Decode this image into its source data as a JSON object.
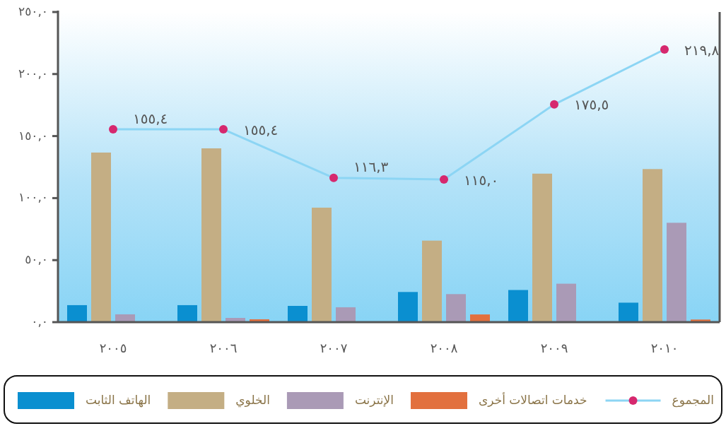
{
  "chart_data": {
    "type": "bar",
    "categories": [
      "٢٠٠٥",
      "٢٠٠٦",
      "٢٠٠٧",
      "٢٠٠٨",
      "٢٠٠٩",
      "٢٠١٠"
    ],
    "series": [
      {
        "name": "الهاتف الثابت",
        "color": "#0a8fd0",
        "values": [
          13.7,
          13.7,
          13.1,
          24.3,
          25.9,
          15.7
        ]
      },
      {
        "name": "الخلوي",
        "color": "#c4ae84",
        "values": [
          136.7,
          140.1,
          92.3,
          65.7,
          119.7,
          123.4
        ]
      },
      {
        "name": "الإنترنت",
        "color": "#aa9ab6",
        "values": [
          6.3,
          3.4,
          12.0,
          22.6,
          31.0,
          80.1
        ]
      },
      {
        "name": "خدمات اتصالات أخرى",
        "color": "#e2703e",
        "values": [
          null,
          2.3,
          null,
          6.2,
          null,
          2.1
        ]
      },
      {
        "name": "المجموع",
        "type": "line",
        "color": "#8cd5f4",
        "colors": [
          "#d6286e",
          "#d6286e",
          "#d6286e",
          "#d6286e",
          "#d6286e",
          "#d6286e"
        ],
        "marker": "circle",
        "values": [
          155.4,
          155.4,
          116.3,
          115.0,
          175.5,
          219.8
        ],
        "value_labels": [
          "١٥٥,٤",
          "١٥٥,٤",
          "١١٦,٣",
          "١١٥,٠",
          "١٧٥,٥",
          "٢١٩,٨"
        ]
      }
    ],
    "ylim": [
      0,
      250
    ],
    "yticks": [
      {
        "value": 0,
        "label": "٠,٠"
      },
      {
        "value": 50,
        "label": "٥٠,٠"
      },
      {
        "value": 100,
        "label": "١٠٠,٠"
      },
      {
        "value": 150,
        "label": "١٥٠,٠"
      },
      {
        "value": 200,
        "label": "٢٠٠,٠"
      },
      {
        "value": 250,
        "label": "٢٥٠,٠"
      }
    ],
    "grid": false,
    "legend": "bottom"
  }
}
